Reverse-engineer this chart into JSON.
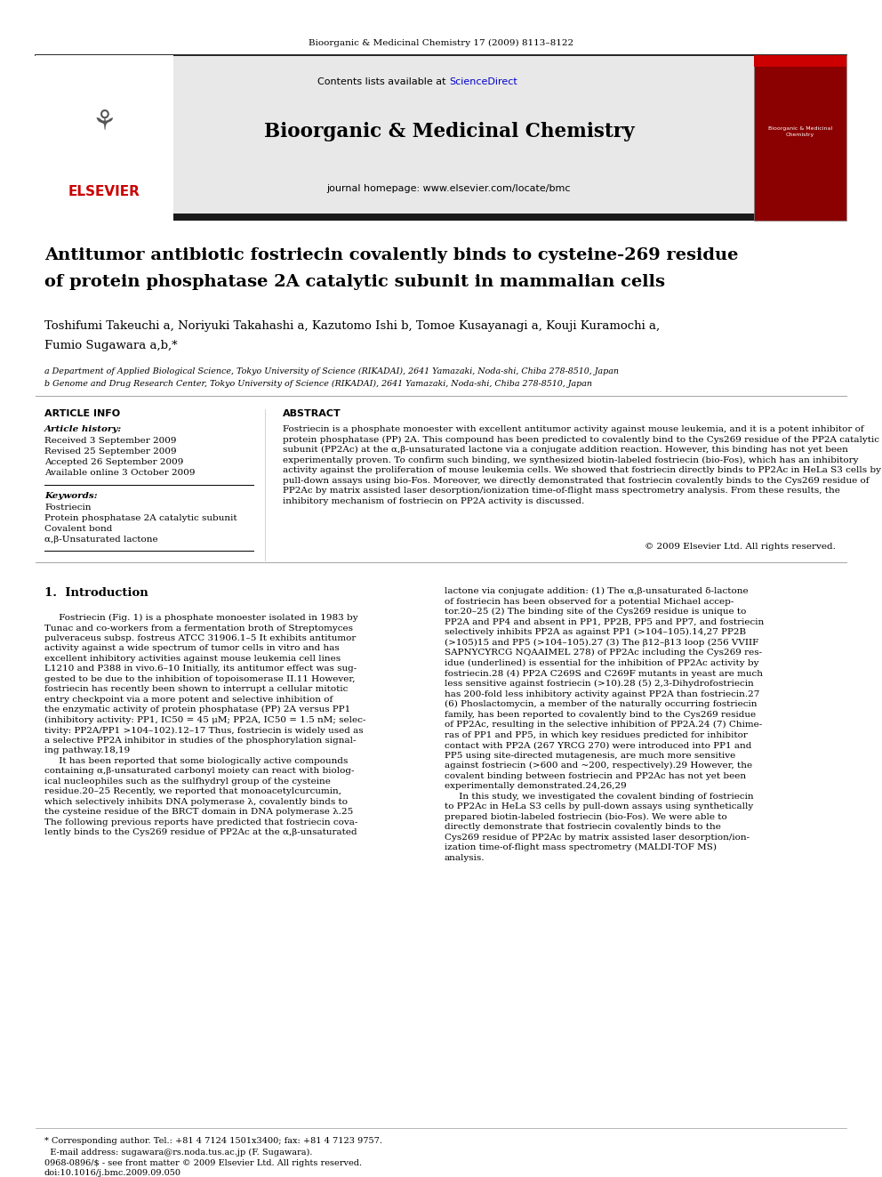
{
  "page_width": 9.92,
  "page_height": 13.23,
  "background_color": "#ffffff",
  "journal_header_text": "Bioorganic & Medicinal Chemistry 17 (2009) 8113–8122",
  "sciencedirect_color": "#0000cc",
  "journal_name": "Bioorganic & Medicinal Chemistry",
  "journal_homepage": "journal homepage: www.elsevier.com/locate/bmc",
  "elsevier_color": "#cc0000",
  "elsevier_text": "ELSEVIER",
  "black_bar_color": "#1a1a1a",
  "header_bg_color": "#e8e8e8",
  "paper_title_line1": "Antitumor antibiotic fostriecin covalently binds to cysteine-269 residue",
  "paper_title_line2": "of protein phosphatase 2A catalytic subunit in mammalian cells",
  "authors_line1": "Toshifumi Takeuchi a, Noriyuki Takahashi a, Kazutomo Ishi b, Tomoe Kusayanagi a, Kouji Kuramochi a,",
  "authors_line2": "Fumio Sugawara a,b,*",
  "affiliation_a": "a Department of Applied Biological Science, Tokyo University of Science (RIKADAI), 2641 Yamazaki, Noda-shi, Chiba 278-8510, Japan",
  "affiliation_b": "b Genome and Drug Research Center, Tokyo University of Science (RIKADAI), 2641 Yamazaki, Noda-shi, Chiba 278-8510, Japan",
  "article_info_header": "ARTICLE INFO",
  "abstract_header": "ABSTRACT",
  "article_history_header": "Article history:",
  "received": "Received 3 September 2009",
  "revised": "Revised 25 September 2009",
  "accepted": "Accepted 26 September 2009",
  "available": "Available online 3 October 2009",
  "keywords_header": "Keywords:",
  "keywords": [
    "Fostriecin",
    "Protein phosphatase 2A catalytic subunit",
    "Covalent bond",
    "α,β-Unsaturated lactone"
  ],
  "abstract_text": "Fostriecin is a phosphate monoester with excellent antitumor activity against mouse leukemia, and it is a potent inhibitor of protein phosphatase (PP) 2A. This compound has been predicted to covalently bind to the Cys269 residue of the PP2A catalytic subunit (PP2Ac) at the α,β-unsaturated lactone via a conjugate addition reaction. However, this binding has not yet been experimentally proven. To confirm such binding, we synthesized biotin-labeled fostriecin (bio-Fos), which has an inhibitory activity against the proliferation of mouse leukemia cells. We showed that fostriecin directly binds to PP2Ac in HeLa S3 cells by pull-down assays using bio-Fos. Moreover, we directly demonstrated that fostriecin covalently binds to the Cys269 residue of PP2Ac by matrix assisted laser desorption/ionization time-of-flight mass spectrometry analysis. From these results, the inhibitory mechanism of fostriecin on PP2A activity is discussed.",
  "copyright_text": "© 2009 Elsevier Ltd. All rights reserved.",
  "section1_header": "1.  Introduction",
  "intro_left_col": "     Fostriecin (Fig. 1) is a phosphate monoester isolated in 1983 by\nTunac and co-workers from a fermentation broth of Streptomyces\npulveraceus subsp. fostreus ATCC 31906.1–5 It exhibits antitumor\nactivity against a wide spectrum of tumor cells in vitro and has\nexcellent inhibitory activities against mouse leukemia cell lines\nL1210 and P388 in vivo.6–10 Initially, its antitumor effect was sug-\ngested to be due to the inhibition of topoisomerase II.11 However,\nfostriecin has recently been shown to interrupt a cellular mitotic\nentry checkpoint via a more potent and selective inhibition of\nthe enzymatic activity of protein phosphatase (PP) 2A versus PP1\n(inhibitory activity: PP1, IC50 = 45 μM; PP2A, IC50 = 1.5 nM; selec-\ntivity: PP2A/PP1 >104–102).12–17 Thus, fostriecin is widely used as\na selective PP2A inhibitor in studies of the phosphorylation signal-\ning pathway.18,19\n     It has been reported that some biologically active compounds\ncontaining α,β-unsaturated carbonyl moiety can react with biolog-\nical nucleophiles such as the sulfhydryl group of the cysteine\nresidue.20–25 Recently, we reported that monoacetylcurcumin,\nwhich selectively inhibits DNA polymerase λ, covalently binds to\nthe cysteine residue of the BRCT domain in DNA polymerase λ.25\nThe following previous reports have predicted that fostriecin cova-\nlently binds to the Cys269 residue of PP2Ac at the α,β-unsaturated",
  "intro_right_col": "lactone via conjugate addition: (1) The α,β-unsaturated δ-lactone\nof fostriecin has been observed for a potential Michael accep-\ntor.20–25 (2) The binding site of the Cys269 residue is unique to\nPP2A and PP4 and absent in PP1, PP2B, PP5 and PP7, and fostriecin\nselectively inhibits PP2A as against PP1 (>104–105).14,27 PP2B\n(>105)15 and PP5 (>104–105).27 (3) The β12–β13 loop (256 VVIIF\nSAPNYCYRCG NQAAIMEL 278) of PP2Ac including the Cys269 res-\nidue (underlined) is essential for the inhibition of PP2Ac activity by\nfostriecin.28 (4) PP2A C269S and C269F mutants in yeast are much\nless sensitive against fostriecin (>10).28 (5) 2,3-Dihydrofostriecin\nhas 200-fold less inhibitory activity against PP2A than fostriecin.27\n(6) Phoslactomycin, a member of the naturally occurring fostriecin\nfamily, has been reported to covalently bind to the Cys269 residue\nof PP2Ac, resulting in the selective inhibition of PP2A.24 (7) Chime-\nras of PP1 and PP5, in which key residues predicted for inhibitor\ncontact with PP2A (267 YRCG 270) were introduced into PP1 and\nPP5 using site-directed mutagenesis, are much more sensitive\nagainst fostriecin (>600 and ~200, respectively).29 However, the\ncovalent binding between fostriecin and PP2Ac has not yet been\nexperimentally demonstrated.24,26,29\n     In this study, we investigated the covalent binding of fostriecin\nto PP2Ac in HeLa S3 cells by pull-down assays using synthetically\nprepared biotin-labeled fostriecin (bio-Fos). We were able to\ndirectly demonstrate that fostriecin covalently binds to the\nCys269 residue of PP2Ac by matrix assisted laser desorption/ion-\nization time-of-flight mass spectrometry (MALDI-TOF MS)\nanalysis.",
  "footnote_line1": "* Corresponding author. Tel.: +81 4 7124 1501x3400; fax: +81 4 7123 9757.",
  "footnote_line2": "  E-mail address: sugawara@rs.noda.tus.ac.jp (F. Sugawara).",
  "footer_text1": "0968-0896/$ - see front matter © 2009 Elsevier Ltd. All rights reserved.",
  "footer_text2": "doi:10.1016/j.bmc.2009.09.050"
}
